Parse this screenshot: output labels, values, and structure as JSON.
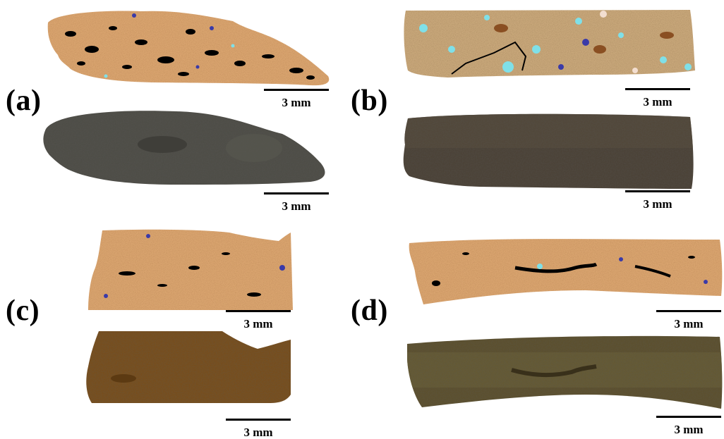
{
  "figure": {
    "panels": [
      {
        "label": "(a)",
        "scale_top": "3 mm",
        "scale_bottom": "3 mm"
      },
      {
        "label": "(b)",
        "scale_top": "3 mm",
        "scale_bottom": "3 mm"
      },
      {
        "label": "(c)",
        "scale_top": "3 mm",
        "scale_bottom": "3 mm"
      },
      {
        "label": "(d)",
        "scale_top": "3 mm",
        "scale_bottom": "3 mm"
      }
    ]
  },
  "colors": {
    "mineral_map_matrix": "#d9a46f",
    "pores": "#000000",
    "mineral_cyan": "#7fe0e8",
    "mineral_blue": "#3a3aa8",
    "optical_a": "#4d4c45",
    "optical_b": "#4a4034",
    "optical_c": "#7a4d17",
    "optical_d": "#5c4f2a"
  }
}
